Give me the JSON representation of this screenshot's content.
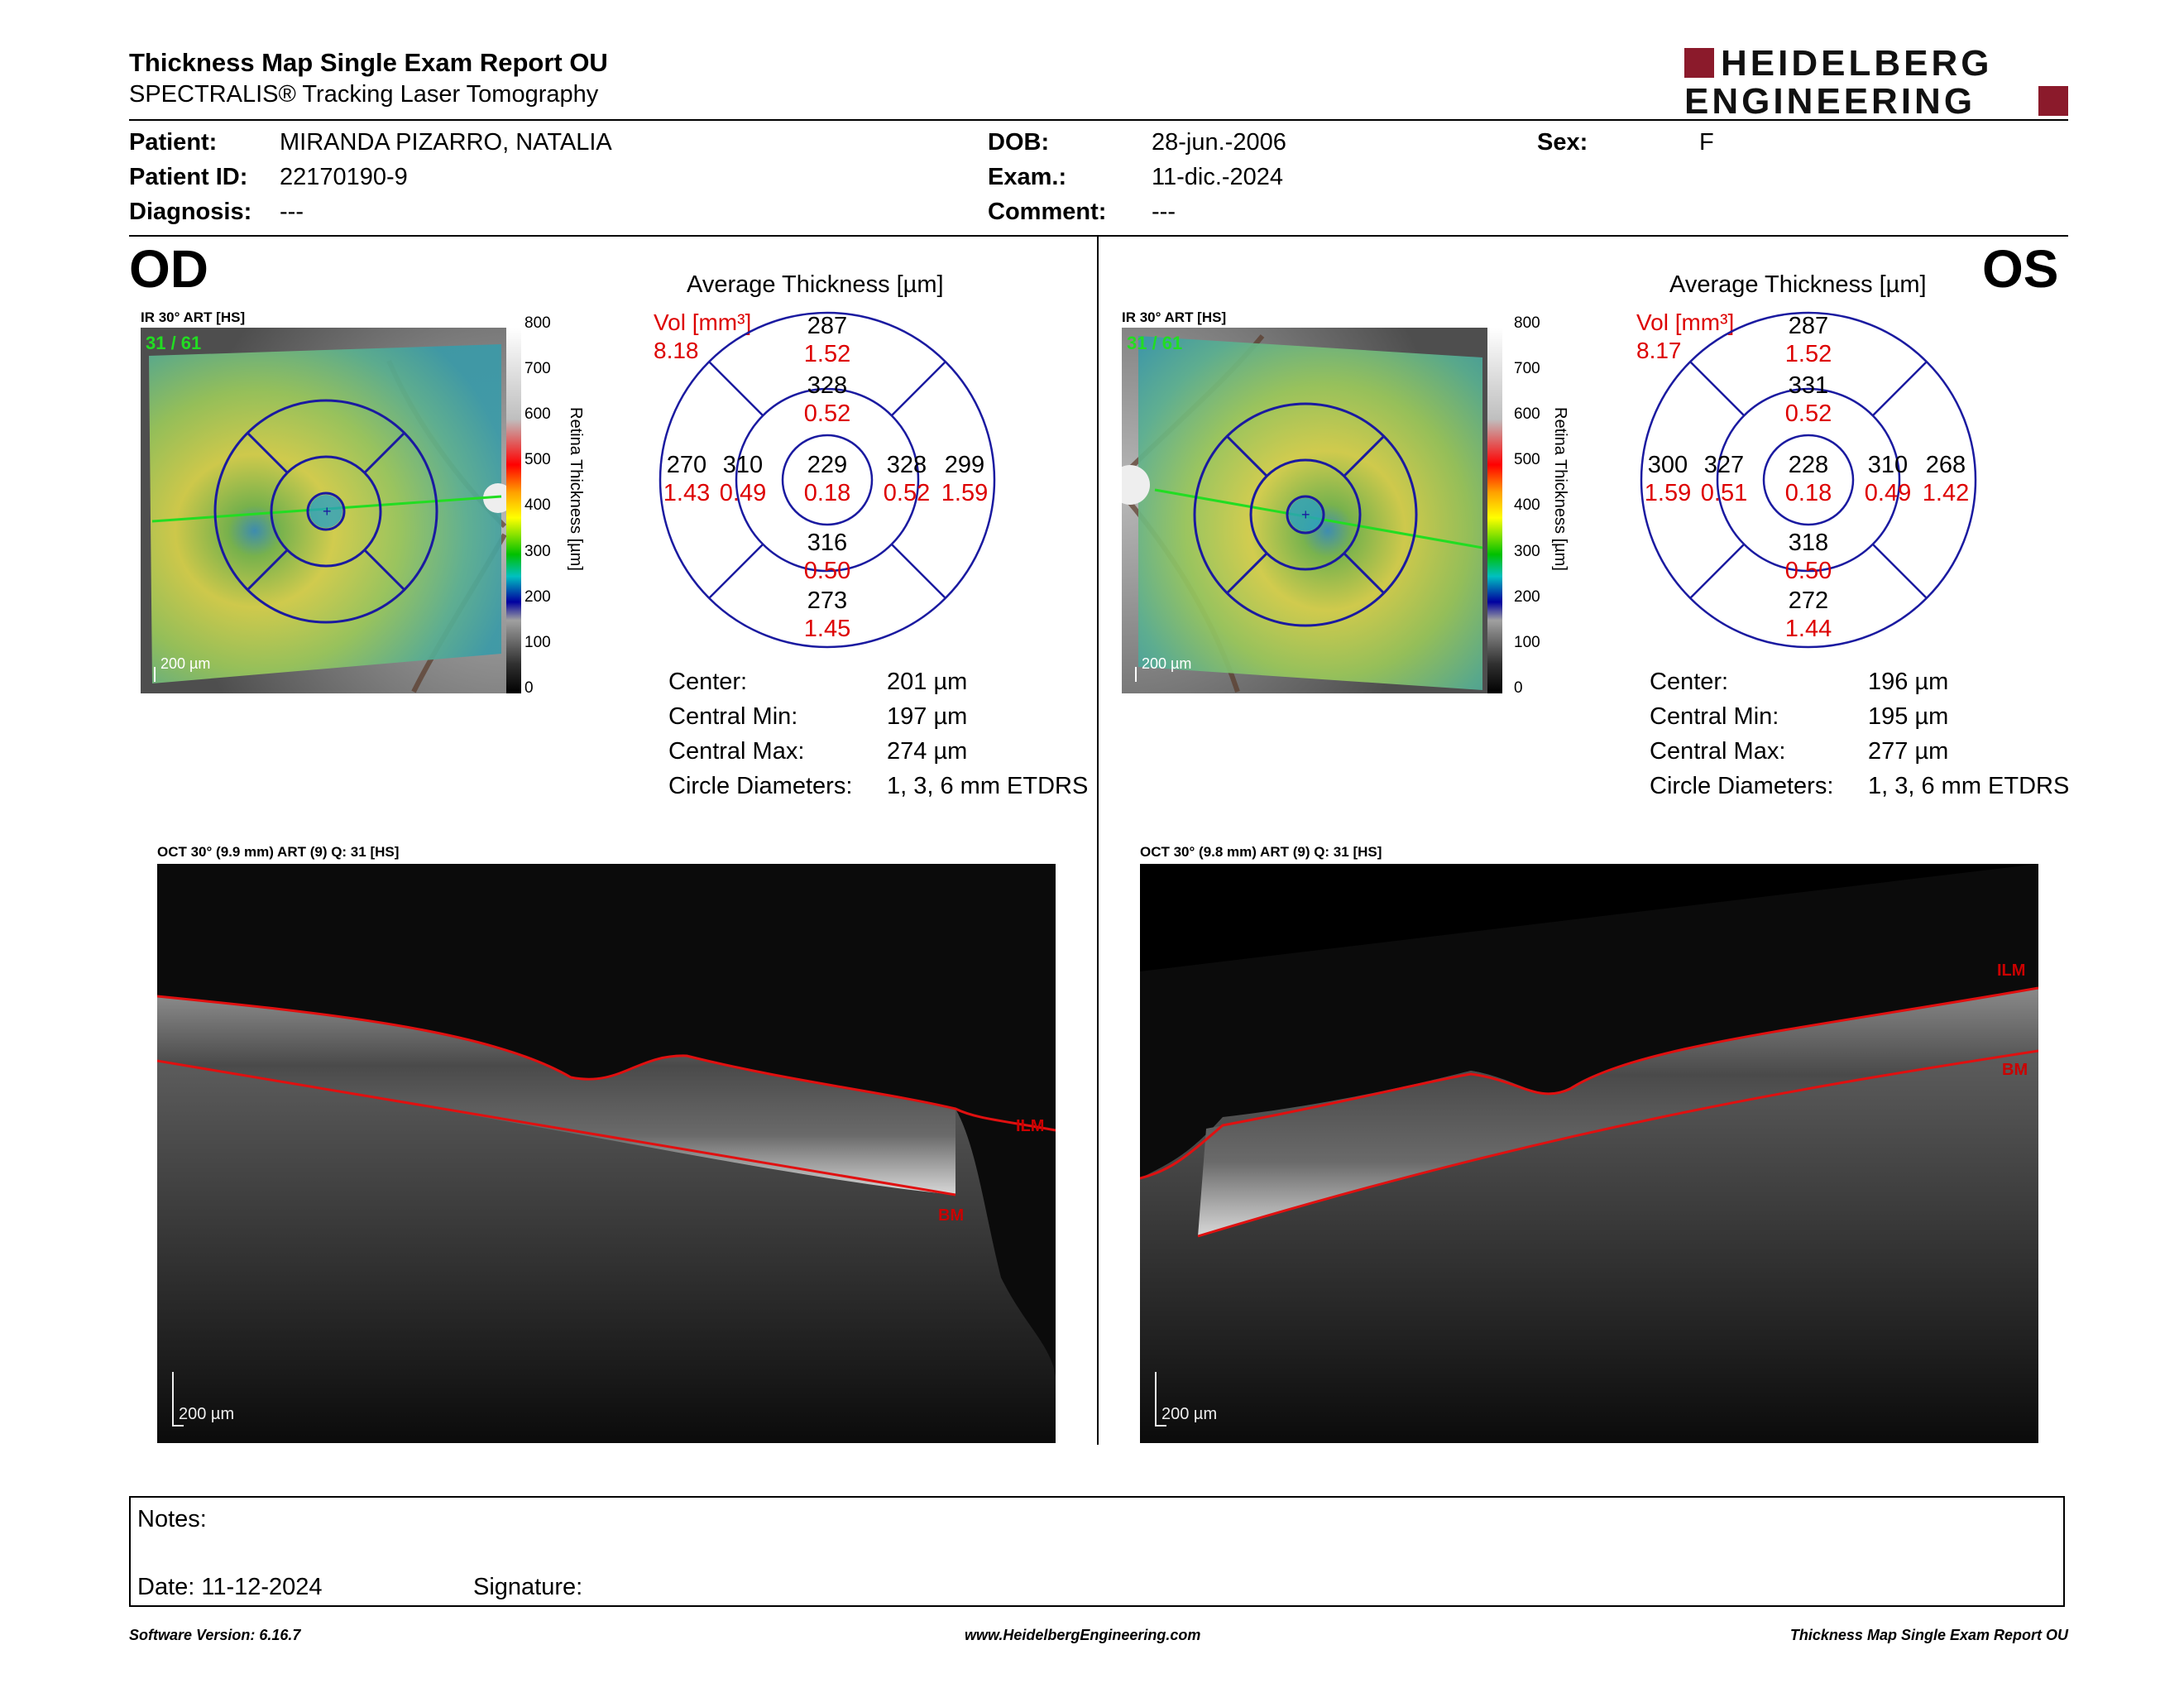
{
  "header": {
    "title": "Thickness Map Single Exam Report OU",
    "subtitle": "SPECTRALIS® Tracking Laser Tomography",
    "logo_line1": "HEIDELBERG",
    "logo_line2": "ENGINEERING",
    "logo_color": "#8b1a2b"
  },
  "patient": {
    "patient_label": "Patient:",
    "patient_value": "MIRANDA PIZARRO, NATALIA",
    "id_label": "Patient ID:",
    "id_value": "22170190-9",
    "diagnosis_label": "Diagnosis:",
    "diagnosis_value": "---",
    "dob_label": "DOB:",
    "dob_value": "28-jun.-2006",
    "exam_label": "Exam.:",
    "exam_value": "11-dic.-2024",
    "comment_label": "Comment:",
    "comment_value": "---",
    "sex_label": "Sex:",
    "sex_value": "F"
  },
  "od": {
    "eye": "OD",
    "ir_label": "IR 30° ART [HS]",
    "overlay_count": "31 / 61",
    "scale": "200 µm",
    "colorbar": {
      "title": "Retina Thickness [µm]",
      "ticks": [
        "800",
        "700",
        "600",
        "500",
        "400",
        "300",
        "200",
        "100",
        "0"
      ]
    },
    "avg_title": "Average Thickness [µm]",
    "vol_label": "Vol [mm³]",
    "vol_total": "8.18",
    "sectors": {
      "center": {
        "thickness": "229",
        "volume": "0.18"
      },
      "inner_top": {
        "thickness": "328",
        "volume": "0.52"
      },
      "inner_bottom": {
        "thickness": "316",
        "volume": "0.50"
      },
      "inner_left": {
        "thickness": "310",
        "volume": "0.49"
      },
      "inner_right": {
        "thickness": "328",
        "volume": "0.52"
      },
      "outer_top": {
        "thickness": "287",
        "volume": "1.52"
      },
      "outer_bottom": {
        "thickness": "273",
        "volume": "1.45"
      },
      "outer_left": {
        "thickness": "270",
        "volume": "1.43"
      },
      "outer_right": {
        "thickness": "299",
        "volume": "1.59"
      }
    },
    "stats": [
      {
        "label": "Center:",
        "value": "201 µm"
      },
      {
        "label": "Central Min:",
        "value": "197 µm"
      },
      {
        "label": "Central Max:",
        "value": "274 µm"
      },
      {
        "label": "Circle Diameters:",
        "value": "1, 3, 6 mm ETDRS"
      }
    ],
    "oct_label": "OCT 30° (9.9 mm) ART (9) Q: 31 [HS]",
    "oct_scale": "200 µm",
    "ilm": "ILM",
    "bm": "BM"
  },
  "os": {
    "eye": "OS",
    "ir_label": "IR 30° ART [HS]",
    "overlay_count": "31 / 61",
    "scale": "200 µm",
    "colorbar": {
      "title": "Retina Thickness [µm]",
      "ticks": [
        "800",
        "700",
        "600",
        "500",
        "400",
        "300",
        "200",
        "100",
        "0"
      ]
    },
    "avg_title": "Average Thickness [µm]",
    "vol_label": "Vol [mm³]",
    "vol_total": "8.17",
    "sectors": {
      "center": {
        "thickness": "228",
        "volume": "0.18"
      },
      "inner_top": {
        "thickness": "331",
        "volume": "0.52"
      },
      "inner_bottom": {
        "thickness": "318",
        "volume": "0.50"
      },
      "inner_left": {
        "thickness": "327",
        "volume": "0.51"
      },
      "inner_right": {
        "thickness": "310",
        "volume": "0.49"
      },
      "outer_top": {
        "thickness": "287",
        "volume": "1.52"
      },
      "outer_bottom": {
        "thickness": "272",
        "volume": "1.44"
      },
      "outer_left": {
        "thickness": "300",
        "volume": "1.59"
      },
      "outer_right": {
        "thickness": "268",
        "volume": "1.42"
      }
    },
    "stats": [
      {
        "label": "Center:",
        "value": "196 µm"
      },
      {
        "label": "Central Min:",
        "value": "195 µm"
      },
      {
        "label": "Central Max:",
        "value": "277 µm"
      },
      {
        "label": "Circle Diameters:",
        "value": "1, 3, 6 mm ETDRS"
      }
    ],
    "oct_label": "OCT 30° (9.8 mm) ART (9) Q: 31 [HS]",
    "oct_scale": "200 µm",
    "ilm": "ILM",
    "bm": "BM"
  },
  "notes": {
    "notes_label": "Notes:",
    "date_label": "Date: 11-12-2024",
    "signature_label": "Signature:"
  },
  "footer": {
    "software": "Software Version: 6.16.7",
    "website": "www.HeidelbergEngineering.com",
    "report": "Thickness Map Single Exam Report OU"
  }
}
